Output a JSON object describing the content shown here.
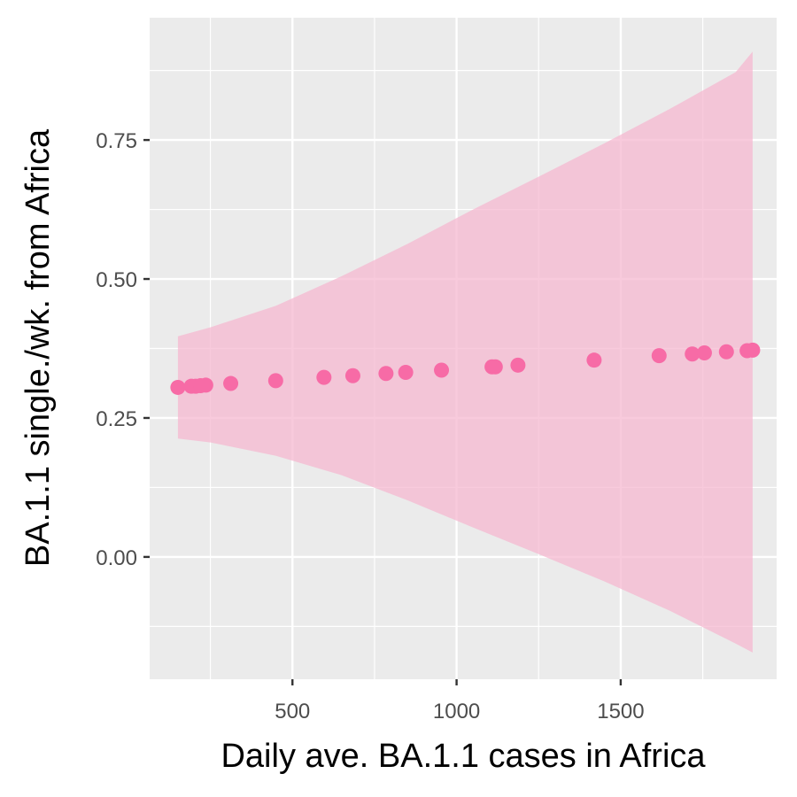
{
  "chart_data": {
    "type": "scatter",
    "title": "",
    "xlabel": "Daily ave. BA.1.1 cases in Africa",
    "ylabel": "BA.1.1 single./wk. from Africa",
    "xlim": [
      65,
      1975
    ],
    "ylim": [
      -0.22,
      0.97
    ],
    "x_ticks": [
      500,
      1000,
      1500
    ],
    "x_tick_labels": [
      "500",
      "1000",
      "1500"
    ],
    "y_ticks": [
      0.0,
      0.25,
      0.5,
      0.75
    ],
    "y_tick_labels": [
      "0.00",
      "0.25",
      "0.50",
      "0.75"
    ],
    "grid": true,
    "legend": "none",
    "colors": {
      "points": "#f76ba6",
      "ribbon": "#f5b8d0",
      "panel": "#ebebeb",
      "grid": "#ffffff"
    },
    "points": [
      {
        "x": 151,
        "y": 0.305
      },
      {
        "x": 192,
        "y": 0.307
      },
      {
        "x": 205,
        "y": 0.307
      },
      {
        "x": 220,
        "y": 0.308
      },
      {
        "x": 236,
        "y": 0.309
      },
      {
        "x": 312,
        "y": 0.312
      },
      {
        "x": 449,
        "y": 0.317
      },
      {
        "x": 596,
        "y": 0.323
      },
      {
        "x": 684,
        "y": 0.326
      },
      {
        "x": 785,
        "y": 0.33
      },
      {
        "x": 845,
        "y": 0.332
      },
      {
        "x": 954,
        "y": 0.336
      },
      {
        "x": 1108,
        "y": 0.342
      },
      {
        "x": 1118,
        "y": 0.342
      },
      {
        "x": 1187,
        "y": 0.345
      },
      {
        "x": 1419,
        "y": 0.354
      },
      {
        "x": 1617,
        "y": 0.362
      },
      {
        "x": 1718,
        "y": 0.365
      },
      {
        "x": 1755,
        "y": 0.367
      },
      {
        "x": 1822,
        "y": 0.369
      },
      {
        "x": 1885,
        "y": 0.371
      },
      {
        "x": 1902,
        "y": 0.372
      }
    ],
    "ribbon": {
      "x": [
        151,
        250,
        450,
        650,
        850,
        1050,
        1250,
        1450,
        1650,
        1850,
        1902
      ],
      "upper": [
        0.397,
        0.413,
        0.452,
        0.505,
        0.563,
        0.625,
        0.684,
        0.744,
        0.806,
        0.872,
        0.909
      ],
      "lower": [
        0.213,
        0.206,
        0.182,
        0.147,
        0.102,
        0.053,
        0.005,
        -0.044,
        -0.097,
        -0.156,
        -0.172
      ]
    }
  }
}
